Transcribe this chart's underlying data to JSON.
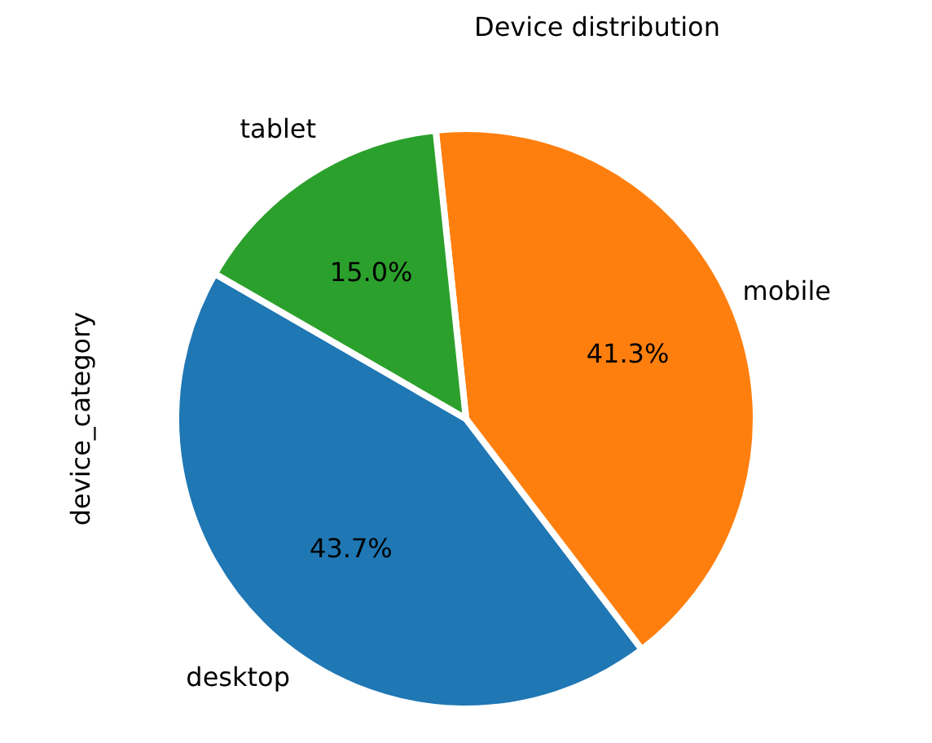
{
  "chart_data": {
    "type": "pie",
    "title": "Device distribution",
    "ylabel": "device_category",
    "categories": [
      "desktop",
      "mobile",
      "tablet"
    ],
    "values": [
      43.7,
      41.3,
      15.0
    ],
    "colors": [
      "#1f77b4",
      "#ff7f0e",
      "#2ca02c"
    ],
    "value_labels": [
      "43.7%",
      "41.3%",
      "15.0%"
    ],
    "legend": false
  }
}
